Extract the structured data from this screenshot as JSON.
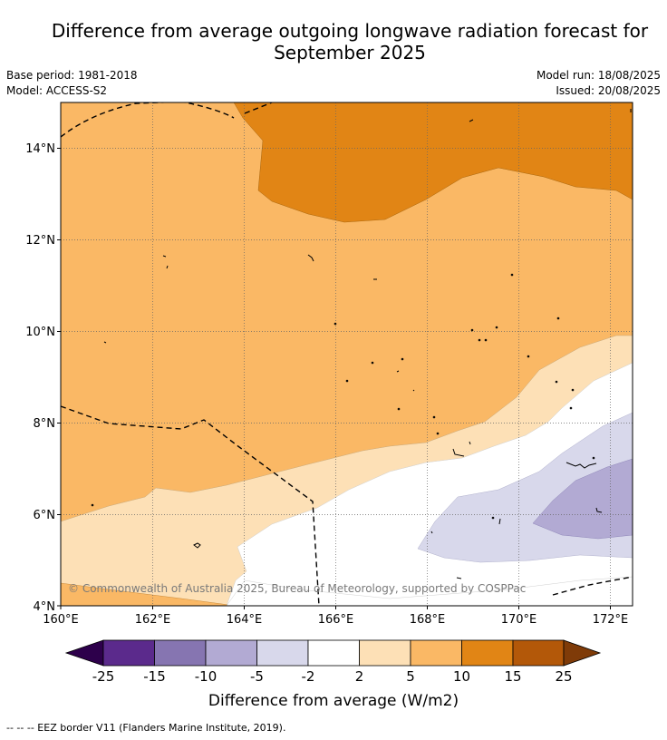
{
  "title_line1": "Difference from average outgoing longwave radiation forecast for",
  "title_line2": "September 2025",
  "base_period": "Base period: 1981-2018",
  "model": "Model: ACCESS-S2",
  "model_run": "Model run: 18/08/2025",
  "issued": "Issued: 20/08/2025",
  "map": {
    "lon_labels": [
      "160°E",
      "162°E",
      "164°E",
      "166°E",
      "168°E",
      "170°E",
      "172°E"
    ],
    "lat_labels": [
      "14°N",
      "12°N",
      "10°N",
      "8°N",
      "6°N",
      "4°N"
    ],
    "copyright": "© Commonwealth of Australia 2025, Bureau of Meteorology, supported by COSPPac"
  },
  "colorbar": {
    "ticks": [
      "-25",
      "-15",
      "-10",
      "-5",
      "-2",
      "2",
      "5",
      "10",
      "15",
      "25"
    ],
    "colors": [
      "#5b2a8c",
      "#8675b1",
      "#b2aad3",
      "#d8d8eb",
      "#ffffff",
      "#fde0b6",
      "#fab865",
      "#e18515",
      "#b35809"
    ],
    "under_color": "#2d004b",
    "over_color": "#7f3b08",
    "label": "Difference from average (W/m2)"
  },
  "legend_note": "--  --  -- EEZ border V11 (Flanders Marine Institute, 2019)."
}
